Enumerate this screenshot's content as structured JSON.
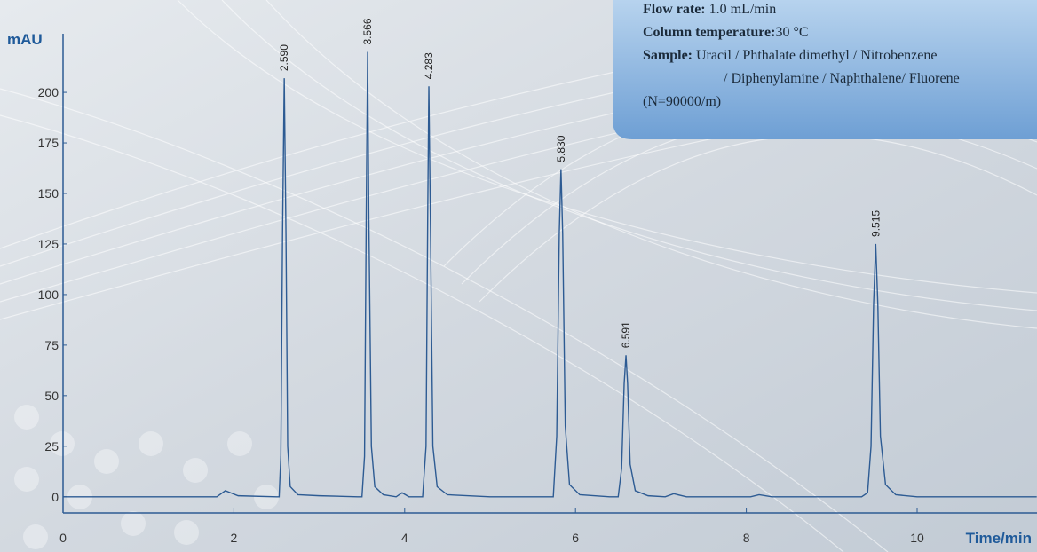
{
  "chart_data": {
    "type": "line",
    "y_label": "mAU",
    "x_label": "Time/min",
    "xlim": [
      0,
      11.4
    ],
    "ylim": [
      -8,
      229
    ],
    "xticks": [
      0,
      2,
      4,
      6,
      8,
      10
    ],
    "yticks": [
      0,
      25,
      50,
      75,
      100,
      125,
      150,
      175,
      200
    ],
    "color": "#2d5b93",
    "x": [
      0,
      1.8,
      1.9,
      2.05,
      2.5,
      2.53,
      2.55,
      2.57,
      2.59,
      2.61,
      2.63,
      2.66,
      2.75,
      3.0,
      3.45,
      3.5,
      3.53,
      3.55,
      3.566,
      3.58,
      3.61,
      3.65,
      3.75,
      3.9,
      3.97,
      4.05,
      4.21,
      4.25,
      4.27,
      4.283,
      4.3,
      4.33,
      4.38,
      4.5,
      5.0,
      5.74,
      5.78,
      5.81,
      5.83,
      5.85,
      5.88,
      5.93,
      6.05,
      6.4,
      6.5,
      6.54,
      6.57,
      6.591,
      6.61,
      6.64,
      6.7,
      6.85,
      7.05,
      7.15,
      7.3,
      8.05,
      8.15,
      8.3,
      9.35,
      9.42,
      9.46,
      9.49,
      9.515,
      9.54,
      9.57,
      9.63,
      9.75,
      10.0,
      11.4
    ],
    "values": [
      0,
      0,
      3,
      0.5,
      0,
      0,
      20,
      130,
      207,
      130,
      25,
      5,
      1,
      0.5,
      0,
      0,
      20,
      140,
      220,
      140,
      25,
      5,
      1,
      0,
      2,
      0,
      0,
      25,
      140,
      203,
      140,
      25,
      5,
      1,
      0,
      0,
      30,
      130,
      162,
      130,
      35,
      6,
      1,
      0,
      0,
      14,
      56,
      70,
      56,
      16,
      3,
      0.5,
      0,
      1.5,
      0,
      0,
      1,
      0,
      0,
      2,
      25,
      95,
      125,
      95,
      30,
      6,
      1,
      0,
      0
    ],
    "annotations": [
      {
        "x": 2.59,
        "y": 207,
        "text": "2.590"
      },
      {
        "x": 3.566,
        "y": 220,
        "text": "3.566"
      },
      {
        "x": 4.283,
        "y": 203,
        "text": "4.283"
      },
      {
        "x": 5.83,
        "y": 162,
        "text": "5.830"
      },
      {
        "x": 6.591,
        "y": 70,
        "text": "6.591"
      },
      {
        "x": 9.515,
        "y": 125,
        "text": "9.515"
      }
    ]
  },
  "info_box": {
    "lines": [
      {
        "label": "Flow rate:",
        "text": " 1.0 mL/min"
      },
      {
        "label": "Column temperature:",
        "text": "30 °C"
      },
      {
        "label": "Sample:",
        "text": " Uracil / Phthalate dimethyl / Nitrobenzene"
      },
      {
        "label": null,
        "text": "/ Diphenylamine / Naphthalene/ Fluorene"
      },
      {
        "label": null,
        "text": "(N=90000/m)"
      }
    ]
  }
}
